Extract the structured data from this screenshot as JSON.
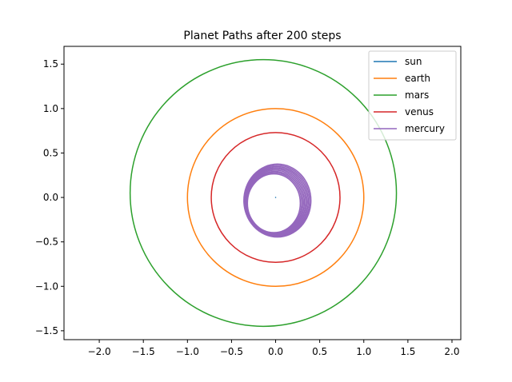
{
  "chart_data": {
    "type": "line",
    "title": "Planet Paths after 200 steps",
    "xlabel": "",
    "ylabel": "",
    "xlim": [
      -2.4,
      2.1
    ],
    "ylim": [
      -1.6,
      1.7
    ],
    "grid": false,
    "legend_placement": "top-right",
    "xticks": [
      -2.0,
      -1.5,
      -1.0,
      -0.5,
      0.0,
      0.5,
      1.0,
      1.5,
      2.0
    ],
    "xtick_labels": [
      "−2.0",
      "−1.5",
      "−1.0",
      "−0.5",
      "0.0",
      "0.5",
      "1.0",
      "1.5",
      "2.0"
    ],
    "yticks": [
      -1.5,
      -1.0,
      -0.5,
      0.0,
      0.5,
      1.0,
      1.5
    ],
    "ytick_labels": [
      "−1.5",
      "−1.0",
      "−0.5",
      "0.0",
      "0.5",
      "1.0",
      "1.5"
    ],
    "series": [
      {
        "name": "sun",
        "color": "#1f77b4",
        "shape": "point",
        "center": [
          0.0,
          0.0
        ],
        "rx": 0.0,
        "ry": 0.0
      },
      {
        "name": "earth",
        "color": "#ff7f0e",
        "shape": "ellipse",
        "center": [
          0.0,
          0.0
        ],
        "rx": 1.0,
        "ry": 1.0
      },
      {
        "name": "mars",
        "color": "#2ca02c",
        "shape": "ellipse",
        "center": [
          -0.14,
          0.05
        ],
        "rx": 1.51,
        "ry": 1.5
      },
      {
        "name": "venus",
        "color": "#d62728",
        "shape": "ellipse",
        "center": [
          0.0,
          0.0
        ],
        "rx": 0.73,
        "ry": 0.73
      },
      {
        "name": "mercury",
        "color": "#9467bd",
        "shape": "band",
        "center": [
          0.0,
          -0.05
        ],
        "rx": 0.34,
        "ry": 0.37,
        "drift": [
          0.04,
          0.03
        ],
        "width": 0.08
      }
    ]
  }
}
